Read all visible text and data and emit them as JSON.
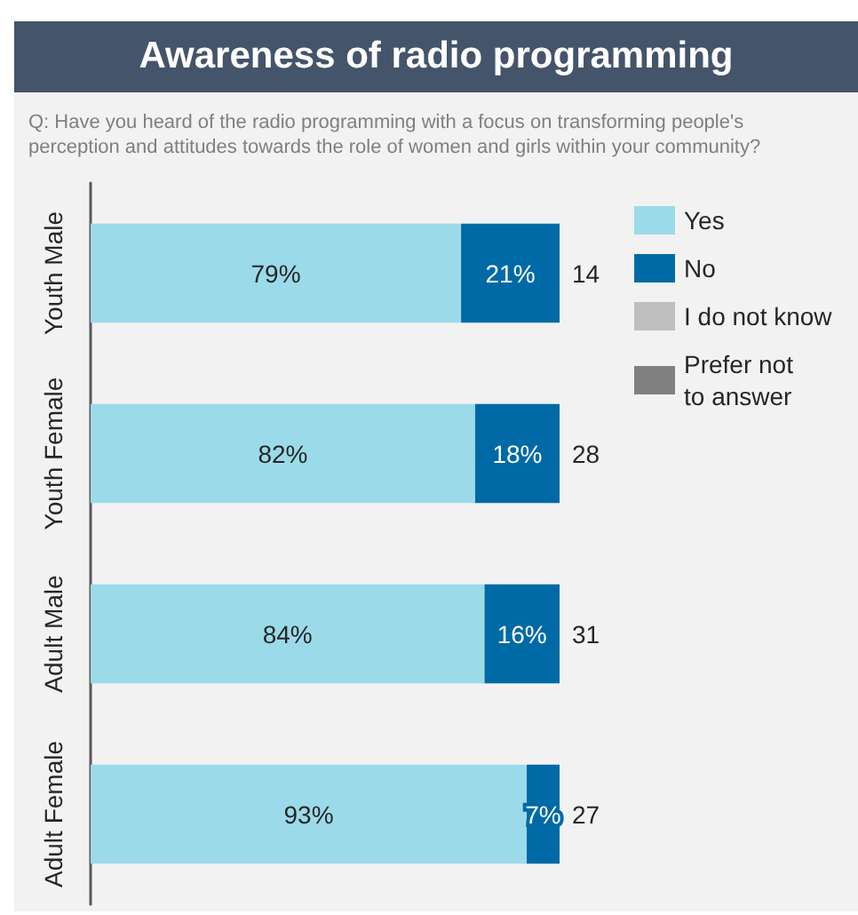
{
  "chart_data": {
    "type": "bar",
    "orientation": "horizontal",
    "stacked": true,
    "title": "Awareness of radio programming",
    "subtitle": "Q: Have you heard of the radio programming with a focus on transforming people's perception and attitudes towards the role of women and girls within your community?",
    "categories": [
      "Youth Male",
      "Youth Female",
      "Adult Male",
      "Adult Female"
    ],
    "series": [
      {
        "name": "Yes",
        "color": "#9bdbe9",
        "values": [
          79,
          82,
          84,
          93
        ],
        "value_labels": [
          "79%",
          "82%",
          "84%",
          "93%"
        ]
      },
      {
        "name": "No",
        "color": "#006aa6",
        "values": [
          21,
          18,
          16,
          7
        ],
        "value_labels": [
          "21%",
          "18%",
          "16%",
          "7%"
        ]
      },
      {
        "name": "I do not know",
        "color": "#bfbfbf",
        "values": [
          0,
          0,
          0,
          0
        ]
      },
      {
        "name": "Prefer not to answer",
        "color": "#808080",
        "values": [
          0,
          0,
          0,
          0
        ]
      }
    ],
    "xlim": [
      0,
      100
    ],
    "tick_labels": "y",
    "legend": "top right",
    "annotations": [
      "14",
      "28",
      "31",
      "27"
    ]
  }
}
